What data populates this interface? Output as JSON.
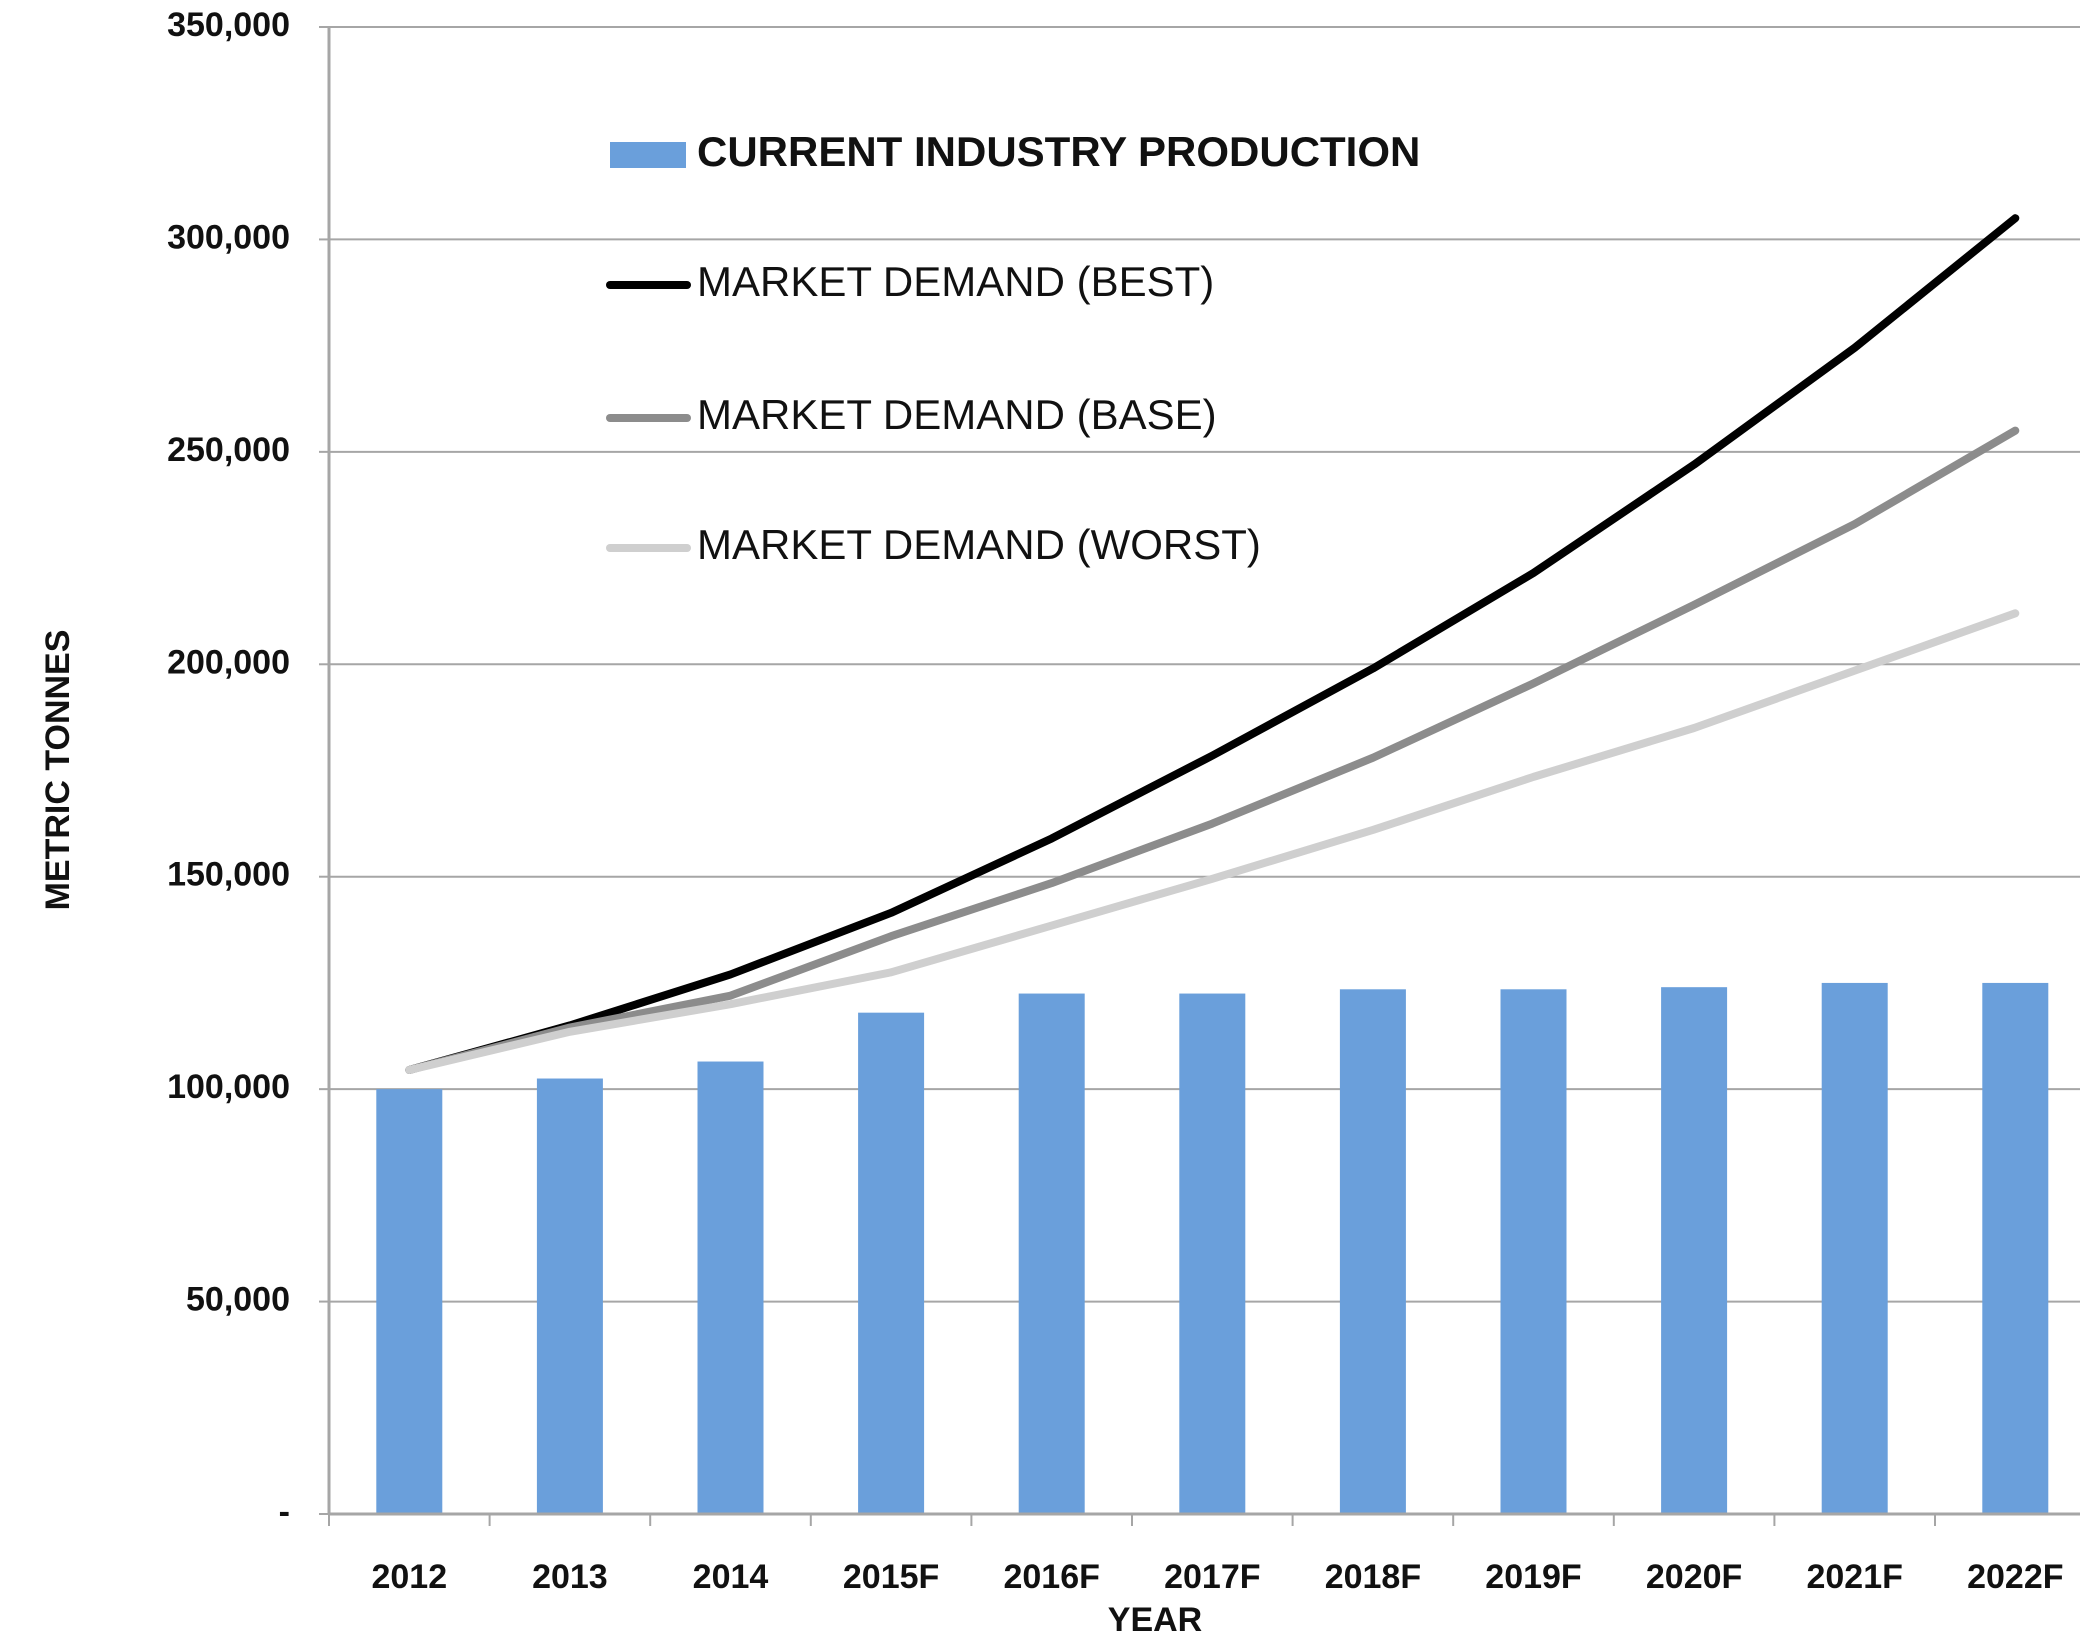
{
  "chart_data": {
    "type": "combo",
    "x_label": "YEAR",
    "y_label": "METRIC TONNES",
    "categories": [
      "2012",
      "2013",
      "2014",
      "2015F",
      "2016F",
      "2017F",
      "2018F",
      "2019F",
      "2020F",
      "2021F",
      "2022F"
    ],
    "series": [
      {
        "name": "CURRENT INDUSTRY PRODUCTION",
        "type": "bar",
        "color": "#6a9fdb",
        "values": [
          100000,
          102500,
          106500,
          118000,
          122500,
          122500,
          123500,
          123500,
          124000,
          125000,
          125000
        ]
      },
      {
        "name": "MARKET DEMAND (BEST)",
        "type": "line",
        "color": "#000000",
        "values": [
          104500,
          115000,
          127000,
          141500,
          159000,
          178500,
          199000,
          221500,
          247000,
          274500,
          305000
        ]
      },
      {
        "name": "MARKET DEMAND (BASE)",
        "type": "line",
        "color": "#8c8c8c",
        "values": [
          104500,
          114500,
          122000,
          136000,
          148500,
          162500,
          178000,
          195500,
          214000,
          233000,
          255000
        ]
      },
      {
        "name": "MARKET DEMAND (WORST)",
        "type": "line",
        "color": "#cfcfcf",
        "values": [
          104500,
          113500,
          120000,
          127500,
          138500,
          149500,
          161000,
          173500,
          185000,
          198500,
          212000
        ]
      }
    ],
    "ylim": [
      0,
      350000
    ],
    "yticks": [
      {
        "value": 0,
        "label": "-"
      },
      {
        "value": 50000,
        "label": "50,000"
      },
      {
        "value": 100000,
        "label": "100,000"
      },
      {
        "value": 150000,
        "label": "150,000"
      },
      {
        "value": 200000,
        "label": "200,000"
      },
      {
        "value": 250000,
        "label": "250,000"
      },
      {
        "value": 300000,
        "label": "300,000"
      },
      {
        "value": 350000,
        "label": "350,000"
      }
    ],
    "grid": true
  }
}
